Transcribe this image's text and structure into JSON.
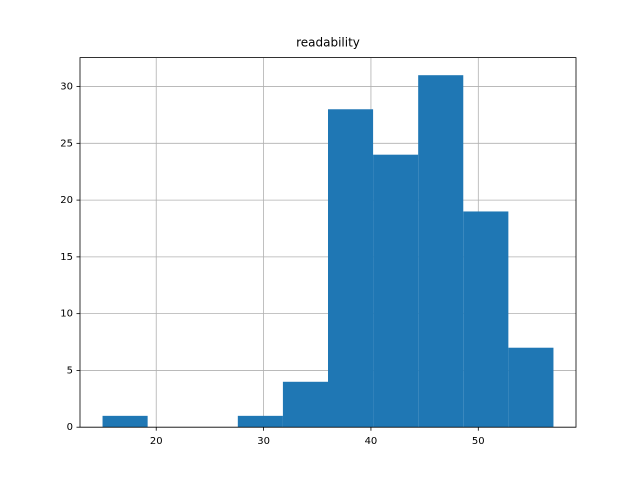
{
  "chart_data": {
    "type": "histogram",
    "title": "readability",
    "bins": [
      15,
      19.2,
      23.4,
      27.6,
      31.8,
      36,
      40.2,
      44.4,
      48.6,
      52.8,
      57
    ],
    "values": [
      1,
      0,
      0,
      1,
      4,
      28,
      24,
      31,
      19,
      7
    ],
    "color": "#1f77b4",
    "xlim": [
      12.9,
      59.1
    ],
    "xticks": [
      20,
      30,
      40,
      50
    ],
    "ylim": [
      0,
      32.55
    ],
    "yticks": [
      0,
      5,
      10,
      15,
      20,
      25,
      30
    ],
    "grid": true
  }
}
